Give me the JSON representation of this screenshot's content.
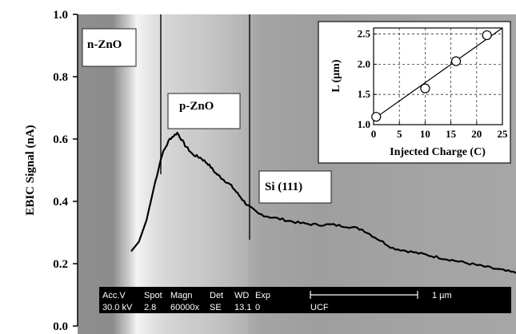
{
  "chart_data": {
    "type": "line",
    "ylabel": "EBIC Signal (nA)",
    "ylim": [
      0.0,
      1.0
    ],
    "yticks": [
      "0.0",
      "0.2",
      "0.4",
      "0.6",
      "0.8",
      "1.0"
    ],
    "ytick_values": [
      0.0,
      0.2,
      0.4,
      0.6,
      0.8,
      1.0
    ],
    "series": [
      {
        "values_note": "",
        "x": [
          0.0,
          0.02,
          0.04,
          0.06,
          0.08,
          0.1,
          0.12,
          0.14,
          0.16,
          0.18,
          0.2,
          0.22,
          0.24,
          0.26,
          0.28,
          0.3,
          0.33,
          0.36,
          0.4,
          0.44,
          0.48,
          0.52,
          0.56,
          0.6,
          0.64,
          0.68,
          0.72,
          0.76,
          0.8,
          0.84,
          0.88,
          0.92,
          0.96,
          1.0
        ],
        "values": [
          0.24,
          0.27,
          0.34,
          0.45,
          0.55,
          0.6,
          0.62,
          0.58,
          0.55,
          0.54,
          0.52,
          0.49,
          0.47,
          0.45,
          0.42,
          0.39,
          0.36,
          0.35,
          0.34,
          0.33,
          0.325,
          0.325,
          0.32,
          0.31,
          0.28,
          0.25,
          0.24,
          0.23,
          0.22,
          0.21,
          0.2,
          0.19,
          0.18,
          0.17
        ]
      }
    ],
    "region_labels": [
      "n-ZnO",
      "p-ZnO",
      "Si (111)"
    ],
    "sem_info": {
      "headers": [
        "Acc.V",
        "Spot",
        "Magn",
        "Det",
        "WD",
        "Exp"
      ],
      "values": [
        "30.0 kV",
        "2.8",
        "60000x",
        "SE",
        "13.1",
        "0"
      ],
      "lab": "UCF",
      "scale_label": "1 µm"
    },
    "inset": {
      "type": "scatter",
      "xlabel": "Injected Charge (C)",
      "ylabel": "L (µm)",
      "xlim": [
        0,
        25
      ],
      "ylim": [
        1.0,
        2.6
      ],
      "xticks": [
        "0",
        "5",
        "10",
        "15",
        "20",
        "25"
      ],
      "xtick_values": [
        0,
        5,
        10,
        15,
        20,
        25
      ],
      "yticks": [
        "1.0",
        "1.5",
        "2.0",
        "2.5"
      ],
      "ytick_values": [
        1.0,
        1.5,
        2.0,
        2.5
      ],
      "points": [
        {
          "x": 0.5,
          "y": 1.13
        },
        {
          "x": 10.0,
          "y": 1.6
        },
        {
          "x": 16.0,
          "y": 2.05
        },
        {
          "x": 22.0,
          "y": 2.48
        }
      ],
      "fit": {
        "x": [
          0,
          25
        ],
        "y": [
          1.09,
          2.62
        ]
      }
    }
  }
}
